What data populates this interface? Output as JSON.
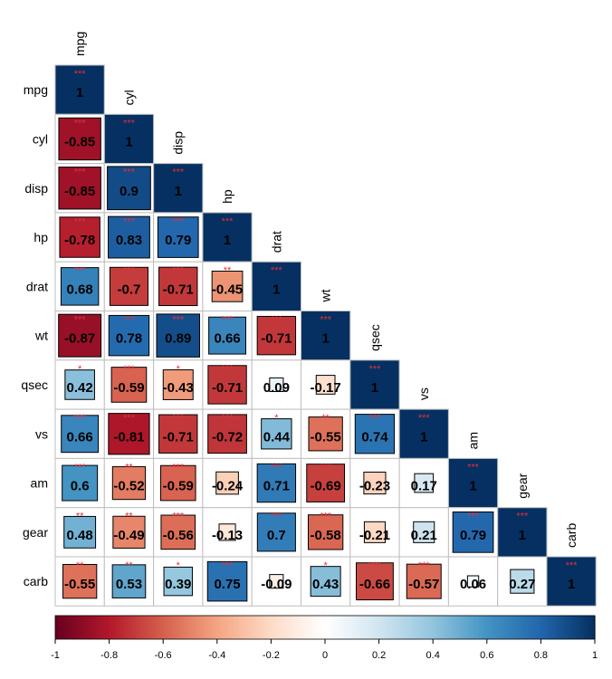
{
  "chart_data": {
    "type": "heatmap",
    "method": "square",
    "layout": "lower-triangle",
    "variables": [
      "mpg",
      "cyl",
      "disp",
      "hp",
      "drat",
      "wt",
      "qsec",
      "vs",
      "am",
      "gear",
      "carb"
    ],
    "matrix": [
      [
        1
      ],
      [
        -0.85,
        1
      ],
      [
        -0.85,
        0.9,
        1
      ],
      [
        -0.78,
        0.83,
        0.79,
        1
      ],
      [
        0.68,
        -0.7,
        -0.71,
        -0.45,
        1
      ],
      [
        -0.87,
        0.78,
        0.89,
        0.66,
        -0.71,
        1
      ],
      [
        0.42,
        -0.59,
        -0.43,
        -0.71,
        0.09,
        -0.17,
        1
      ],
      [
        0.66,
        -0.81,
        -0.71,
        -0.72,
        0.44,
        -0.55,
        0.74,
        1
      ],
      [
        0.6,
        -0.52,
        -0.59,
        -0.24,
        0.71,
        -0.69,
        -0.23,
        0.17,
        1
      ],
      [
        0.48,
        -0.49,
        -0.56,
        -0.13,
        0.7,
        -0.58,
        -0.21,
        0.21,
        0.79,
        1
      ],
      [
        -0.55,
        0.53,
        0.39,
        0.75,
        -0.09,
        0.43,
        -0.66,
        -0.57,
        0.06,
        0.27,
        1
      ]
    ],
    "significance_marker": "*",
    "significance_color": "#E0303A",
    "colorbar": {
      "range": [
        -1,
        1
      ],
      "ticks": [
        "-1",
        "-0.8",
        "-0.6",
        "-0.4",
        "-0.2",
        "0",
        "0.2",
        "0.4",
        "0.6",
        "0.8",
        "1"
      ],
      "placement": "bottom"
    },
    "palette": [
      "#67001F",
      "#B2182B",
      "#D6604D",
      "#F4A582",
      "#FDDBC7",
      "#FFFFFF",
      "#D1E5F0",
      "#92C5DE",
      "#4393C3",
      "#2166AC",
      "#053061"
    ],
    "grid_color": "#BEBEBE"
  }
}
